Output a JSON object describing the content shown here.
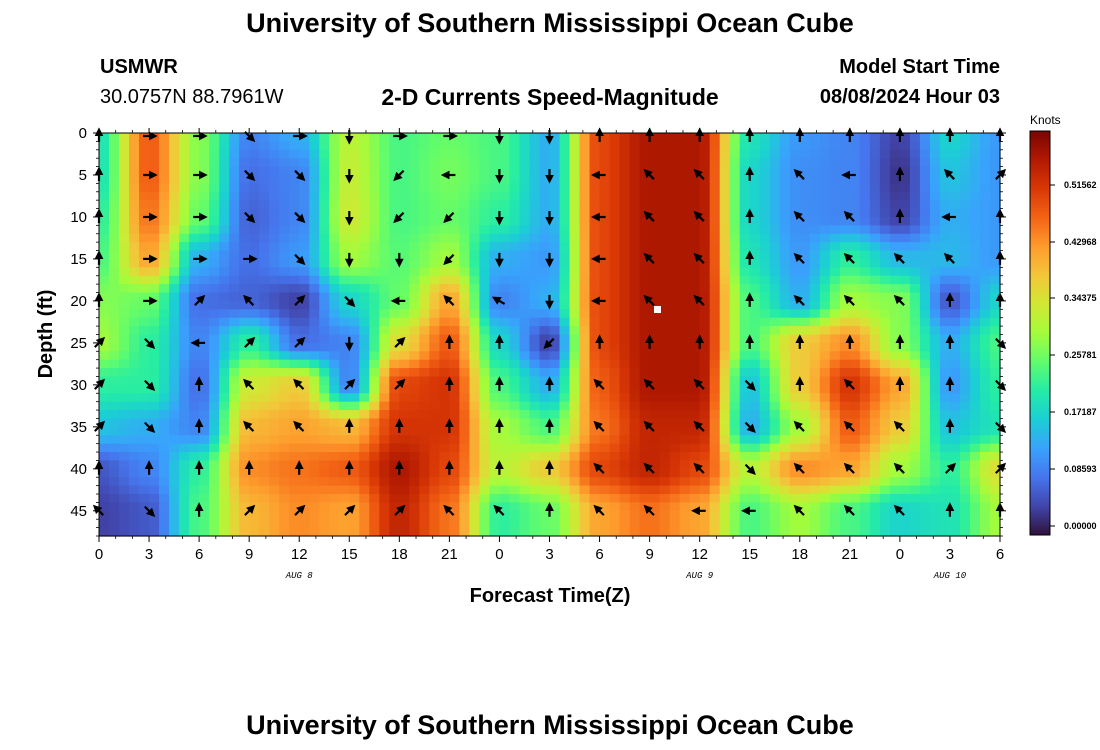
{
  "header": {
    "title": "University of Southern Mississippi Ocean Cube",
    "station": "USMWR",
    "coords": "30.0757N  88.7961W",
    "plot_title": "2-D Currents Speed-Magnitude",
    "model_start_label": "Model Start Time",
    "model_start_value": "08/08/2024 Hour 03"
  },
  "footer": {
    "title": "University of Southern Mississippi Ocean Cube"
  },
  "colorbar": {
    "units": "Knots",
    "labels": [
      "0.51562",
      "0.42968",
      "0.34375",
      "0.25781",
      "0.17187",
      "0.08593",
      "0.00000"
    ],
    "colors": [
      "#30123b",
      "#4145ab",
      "#4675ed",
      "#39a2fc",
      "#1bcfd4",
      "#24eca6",
      "#61fc6c",
      "#a4fc3b",
      "#d1e834",
      "#f3c63a",
      "#fe9b2d",
      "#f36315",
      "#d93806",
      "#b11901",
      "#7a0403"
    ]
  },
  "chart_data": {
    "type": "heatmap",
    "title": "2-D Currents Speed-Magnitude",
    "xlabel": "Forecast Time(Z)",
    "ylabel": "Depth (ft)",
    "x_hours": [
      0,
      3,
      6,
      9,
      12,
      15,
      18,
      21,
      24,
      27,
      30,
      33,
      36,
      39,
      42,
      45,
      48,
      51,
      54
    ],
    "x_tick_labels": [
      "0",
      "3",
      "6",
      "9",
      "12",
      "15",
      "18",
      "21",
      "0",
      "3",
      "6",
      "9",
      "12",
      "15",
      "18",
      "21",
      "0",
      "3",
      "6"
    ],
    "xlim": [
      0,
      54
    ],
    "date_labels": [
      {
        "text": "AUG 8",
        "hour": 12
      },
      {
        "text": "AUG 9",
        "hour": 36
      },
      {
        "text": "AUG 10",
        "hour": 51
      }
    ],
    "y_depths": [
      0,
      5,
      10,
      15,
      20,
      25,
      30,
      35,
      40,
      45
    ],
    "y_tick_labels": [
      "0",
      "5",
      "10",
      "15",
      "20",
      "25",
      "30",
      "35",
      "40",
      "45"
    ],
    "ylim": [
      0,
      48
    ],
    "zlim": [
      0,
      0.6
    ],
    "speed_knots": [
      [
        0.2,
        0.48,
        0.28,
        0.1,
        0.14,
        0.32,
        0.24,
        0.26,
        0.24,
        0.14,
        0.5,
        0.56,
        0.56,
        0.2,
        0.12,
        0.1,
        0.04,
        0.18,
        0.12
      ],
      [
        0.2,
        0.48,
        0.28,
        0.08,
        0.1,
        0.33,
        0.24,
        0.27,
        0.24,
        0.14,
        0.5,
        0.56,
        0.56,
        0.18,
        0.11,
        0.1,
        0.03,
        0.16,
        0.12
      ],
      [
        0.22,
        0.46,
        0.26,
        0.07,
        0.1,
        0.34,
        0.24,
        0.26,
        0.22,
        0.14,
        0.5,
        0.56,
        0.56,
        0.18,
        0.11,
        0.1,
        0.04,
        0.14,
        0.12
      ],
      [
        0.24,
        0.42,
        0.14,
        0.08,
        0.12,
        0.3,
        0.25,
        0.3,
        0.14,
        0.12,
        0.5,
        0.56,
        0.56,
        0.2,
        0.12,
        0.22,
        0.15,
        0.15,
        0.12
      ],
      [
        0.28,
        0.26,
        0.08,
        0.07,
        0.04,
        0.18,
        0.26,
        0.42,
        0.1,
        0.14,
        0.5,
        0.56,
        0.56,
        0.24,
        0.14,
        0.3,
        0.28,
        0.06,
        0.18
      ],
      [
        0.3,
        0.22,
        0.1,
        0.22,
        0.08,
        0.1,
        0.36,
        0.48,
        0.18,
        0.04,
        0.5,
        0.56,
        0.56,
        0.24,
        0.38,
        0.44,
        0.28,
        0.14,
        0.24
      ],
      [
        0.22,
        0.22,
        0.08,
        0.34,
        0.38,
        0.1,
        0.5,
        0.52,
        0.24,
        0.14,
        0.48,
        0.56,
        0.56,
        0.16,
        0.38,
        0.52,
        0.42,
        0.12,
        0.22
      ],
      [
        0.16,
        0.14,
        0.1,
        0.4,
        0.42,
        0.4,
        0.52,
        0.52,
        0.3,
        0.24,
        0.46,
        0.54,
        0.54,
        0.14,
        0.3,
        0.48,
        0.38,
        0.16,
        0.2
      ],
      [
        0.06,
        0.1,
        0.22,
        0.44,
        0.46,
        0.48,
        0.56,
        0.5,
        0.32,
        0.38,
        0.5,
        0.54,
        0.5,
        0.32,
        0.44,
        0.42,
        0.3,
        0.22,
        0.36
      ],
      [
        0.04,
        0.06,
        0.24,
        0.4,
        0.44,
        0.42,
        0.54,
        0.46,
        0.22,
        0.26,
        0.42,
        0.46,
        0.42,
        0.24,
        0.3,
        0.24,
        0.18,
        0.2,
        0.3
      ]
    ],
    "direction_deg": [
      [
        0,
        90,
        90,
        135,
        90,
        180,
        90,
        90,
        180,
        180,
        0,
        0,
        0,
        0,
        0,
        0,
        0,
        0,
        0
      ],
      [
        0,
        90,
        90,
        135,
        135,
        180,
        225,
        270,
        180,
        180,
        270,
        315,
        315,
        0,
        315,
        270,
        0,
        315,
        45
      ],
      [
        0,
        90,
        90,
        135,
        135,
        180,
        225,
        225,
        180,
        180,
        270,
        315,
        315,
        0,
        315,
        315,
        0,
        270,
        0
      ],
      [
        0,
        90,
        90,
        90,
        135,
        180,
        180,
        225,
        180,
        180,
        270,
        315,
        315,
        0,
        315,
        315,
        315,
        315,
        0
      ],
      [
        0,
        90,
        45,
        315,
        45,
        135,
        270,
        315,
        300,
        180,
        270,
        315,
        315,
        0,
        315,
        315,
        315,
        0,
        0
      ],
      [
        45,
        135,
        270,
        45,
        45,
        180,
        45,
        0,
        0,
        225,
        0,
        0,
        0,
        0,
        0,
        0,
        0,
        0,
        135
      ],
      [
        45,
        135,
        0,
        315,
        315,
        45,
        45,
        0,
        0,
        0,
        315,
        315,
        315,
        135,
        0,
        315,
        0,
        0,
        135
      ],
      [
        45,
        135,
        0,
        315,
        315,
        0,
        0,
        0,
        0,
        0,
        315,
        315,
        315,
        135,
        315,
        315,
        315,
        0,
        135
      ],
      [
        0,
        0,
        0,
        0,
        0,
        0,
        0,
        0,
        0,
        0,
        315,
        315,
        315,
        135,
        315,
        315,
        315,
        45,
        45
      ],
      [
        315,
        135,
        0,
        45,
        45,
        45,
        45,
        315,
        315,
        0,
        315,
        315,
        270,
        270,
        315,
        315,
        315,
        0,
        0
      ]
    ]
  }
}
